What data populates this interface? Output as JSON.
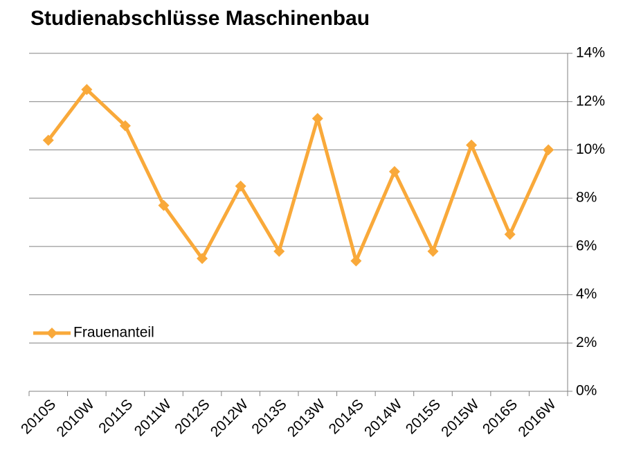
{
  "chart_data": {
    "type": "line",
    "title": "Studienabschlüsse Maschinenbau",
    "categories": [
      "2010S",
      "2010W",
      "2011S",
      "2011W",
      "2012S",
      "2012W",
      "2013S",
      "2013W",
      "2014S",
      "2014W",
      "2015S",
      "2015W",
      "2016S",
      "2016W"
    ],
    "series": [
      {
        "name": "Frauenanteil",
        "color": "#f9a93a",
        "values": [
          10.4,
          12.5,
          11.0,
          7.7,
          5.5,
          8.5,
          5.8,
          11.3,
          5.4,
          9.1,
          5.8,
          10.2,
          6.5,
          10.0
        ]
      }
    ],
    "ylim": [
      0,
      14
    ],
    "yticks": [
      {
        "value": 0,
        "label": "0%"
      },
      {
        "value": 2,
        "label": "2%"
      },
      {
        "value": 4,
        "label": "4%"
      },
      {
        "value": 6,
        "label": "6%"
      },
      {
        "value": 8,
        "label": "8%"
      },
      {
        "value": 10,
        "label": "10%"
      },
      {
        "value": 12,
        "label": "12%"
      },
      {
        "value": 14,
        "label": "14%"
      }
    ],
    "grid": true,
    "legend": "lower left",
    "yaxis_side": "right"
  }
}
